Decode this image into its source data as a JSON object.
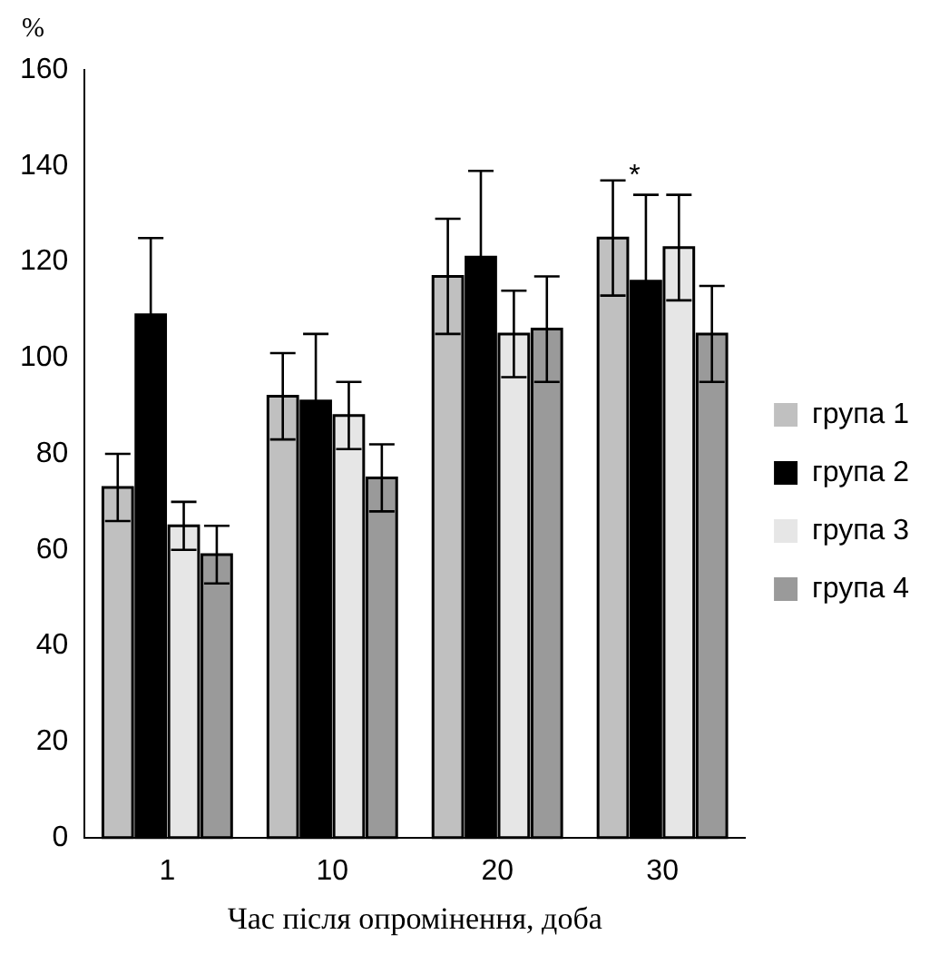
{
  "chart_data": {
    "type": "bar",
    "ylabel": "%",
    "xlabel": "Час після опромінення, доба",
    "categories": [
      "1",
      "10",
      "20",
      "30"
    ],
    "series": [
      {
        "name": "група 1",
        "color": "#c0c0c0",
        "values": [
          73,
          92,
          117,
          125
        ],
        "errors": [
          7,
          9,
          12,
          12
        ]
      },
      {
        "name": "група 2",
        "color": "#000000",
        "values": [
          109,
          91,
          121,
          116
        ],
        "errors": [
          16,
          14,
          18,
          18
        ]
      },
      {
        "name": "група 3",
        "color": "#e6e6e6",
        "values": [
          65,
          88,
          105,
          123
        ],
        "errors": [
          5,
          7,
          9,
          11
        ]
      },
      {
        "name": "група 4",
        "color": "#9a9a9a",
        "values": [
          59,
          75,
          106,
          105
        ],
        "errors": [
          6,
          7,
          11,
          10
        ]
      }
    ],
    "ylim": [
      0,
      160
    ],
    "yticks": [
      0,
      20,
      40,
      60,
      80,
      100,
      120,
      140,
      160
    ],
    "grid": false,
    "legend": "right",
    "annotations": [
      "*"
    ]
  }
}
